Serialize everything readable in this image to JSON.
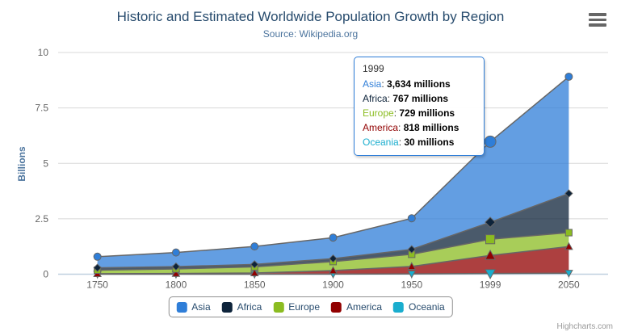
{
  "chart": {
    "title": "Historic and Estimated Worldwide Population Growth by Region",
    "subtitle": "Source: Wikipedia.org",
    "y_axis_title": "Billions",
    "credits": "Highcharts.com"
  },
  "chart_data": {
    "type": "area",
    "stacking": "normal",
    "title": "Historic and Estimated Worldwide Population Growth by Region",
    "subtitle": "Source: Wikipedia.org",
    "xlabel": "",
    "ylabel": "Billions",
    "values_unit": "millions",
    "ylim": [
      0,
      10
    ],
    "yticks": [
      0,
      2.5,
      5,
      7.5,
      10
    ],
    "categories": [
      "1750",
      "1800",
      "1850",
      "1900",
      "1950",
      "1999",
      "2050"
    ],
    "series": [
      {
        "name": "Asia",
        "color": "#2f7ed8",
        "marker": "circle",
        "values": [
          502,
          635,
          809,
          947,
          1402,
          3634,
          5268
        ]
      },
      {
        "name": "Africa",
        "color": "#0d233a",
        "marker": "diamond",
        "values": [
          106,
          107,
          111,
          133,
          221,
          767,
          1766
        ]
      },
      {
        "name": "Europe",
        "color": "#8bbc21",
        "marker": "square",
        "values": [
          163,
          203,
          276,
          408,
          547,
          729,
          628
        ]
      },
      {
        "name": "America",
        "color": "#910000",
        "marker": "triangle",
        "values": [
          18,
          31,
          54,
          156,
          339,
          818,
          1201
        ]
      },
      {
        "name": "Oceania",
        "color": "#1aadce",
        "marker": "triangle-down",
        "values": [
          2,
          2,
          2,
          6,
          13,
          30,
          46
        ]
      }
    ],
    "hover_category_index": 5,
    "line_color": "#666666",
    "fill_opacity": 0.75,
    "grid": true,
    "grid_color": "#d8d8d8",
    "axis_color": "#c0d0e0",
    "legend_position": "bottom"
  },
  "tooltip": {
    "header": "1999",
    "rows": [
      {
        "name": "Asia",
        "sep": ": ",
        "value": "3,634 millions",
        "color": "#2f7ed8"
      },
      {
        "name": "Africa",
        "sep": ": ",
        "value": "767 millions",
        "color": "#0d233a"
      },
      {
        "name": "Europe",
        "sep": ": ",
        "value": "729 millions",
        "color": "#8bbc21"
      },
      {
        "name": "America",
        "sep": ": ",
        "value": "818 millions",
        "color": "#910000"
      },
      {
        "name": "Oceania",
        "sep": ": ",
        "value": "30 millions",
        "color": "#1aadce"
      }
    ]
  }
}
